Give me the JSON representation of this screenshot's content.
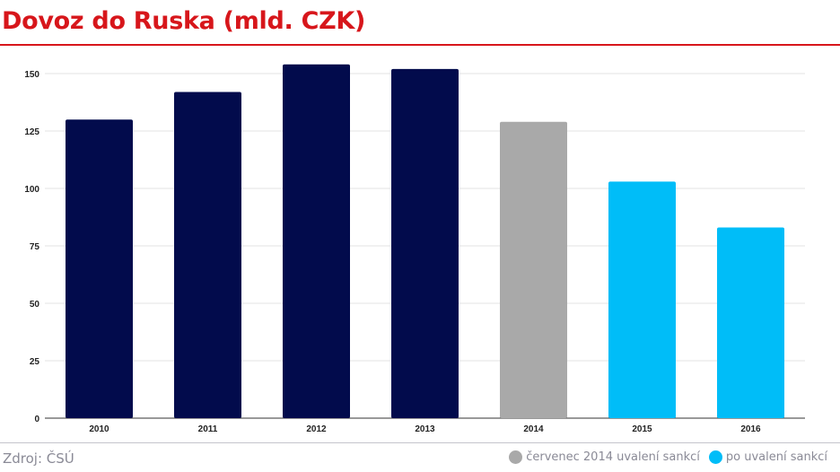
{
  "header": {
    "title": "Dovoz do Ruska (mld. CZK)"
  },
  "footer": {
    "source": "Zdroj: ČSÚ"
  },
  "colors": {
    "accent": "#d7161b",
    "before": "#020b4c",
    "july2014": "#a9a9a9",
    "after": "#00bdf8"
  },
  "legend": [
    {
      "label": "červenec 2014 uvalení sankcí",
      "color": "#a9a9a9"
    },
    {
      "label": "po uvalení sankcí",
      "color": "#00bdf8"
    }
  ],
  "chart_data": {
    "type": "bar",
    "title": "Dovoz do Ruska (mld. CZK)",
    "xlabel": "",
    "ylabel": "",
    "categories": [
      "2010",
      "2011",
      "2012",
      "2013",
      "2014",
      "2015",
      "2016"
    ],
    "values": [
      130,
      142,
      154,
      152,
      129,
      103,
      83
    ],
    "bar_colors": [
      "#020b4c",
      "#020b4c",
      "#020b4c",
      "#020b4c",
      "#a9a9a9",
      "#00bdf8",
      "#00bdf8"
    ],
    "ylim": [
      0,
      160
    ],
    "yticks": [
      0,
      25,
      50,
      75,
      100,
      125,
      150
    ],
    "grid": true,
    "legend_position": "bottom-right"
  }
}
